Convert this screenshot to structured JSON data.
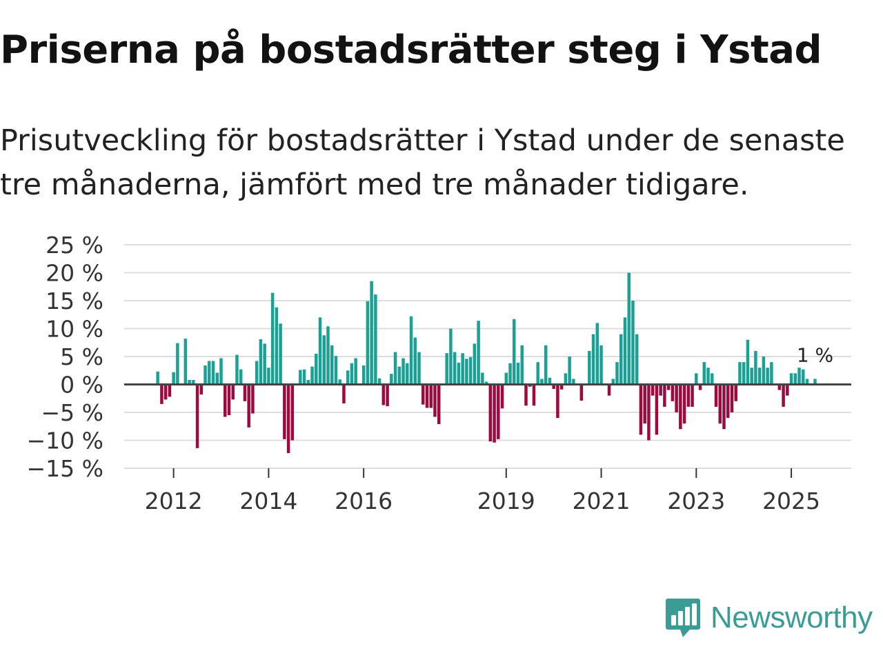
{
  "title": "Priserna på bostadsrätter steg i Ystad",
  "subtitle": "Prisutveckling för bostadsrätter i Ystad under de senaste tre månaderna, jämfört med tre månader tidigare.",
  "brand": {
    "name": "Newsworthy",
    "icon": "newsworthy-logo-icon",
    "color": "#3a9c95"
  },
  "colors": {
    "positive": "#1aa196",
    "negative": "#9c0a3f",
    "grid": "#dddddd",
    "zero_line": "#444444"
  },
  "chart_data": {
    "type": "bar",
    "title": "Priserna på bostadsrätter steg i Ystad",
    "xlabel": "",
    "ylabel": "",
    "ylim": [
      -15,
      25
    ],
    "y_ticks": [
      25,
      20,
      15,
      10,
      5,
      0,
      -5,
      -10,
      -15
    ],
    "y_tick_labels": [
      "25 %",
      "20 %",
      "15 %",
      "10 %",
      "5 %",
      "0 %",
      "−5 %",
      "−10 %",
      "−15 %"
    ],
    "x_ticks": [
      {
        "label": "2012",
        "year": 2012
      },
      {
        "label": "2014",
        "year": 2014
      },
      {
        "label": "2016",
        "year": 2016
      },
      {
        "label": "2019",
        "year": 2019
      },
      {
        "label": "2021",
        "year": 2021
      },
      {
        "label": "2023",
        "year": 2023
      },
      {
        "label": "2025",
        "year": 2025
      }
    ],
    "x_start": {
      "year": 2011,
      "month": 1
    },
    "annotation": {
      "label": "1 %",
      "value": 1
    },
    "series": [
      {
        "name": "Prisutveckling",
        "data": [
          {
            "year": 2011,
            "month": 9,
            "value": 2.3
          },
          {
            "year": 2011,
            "month": 10,
            "value": -3.5
          },
          {
            "year": 2011,
            "month": 11,
            "value": -2.7
          },
          {
            "year": 2011,
            "month": 12,
            "value": -2.2
          },
          {
            "year": 2012,
            "month": 1,
            "value": 2.2
          },
          {
            "year": 2012,
            "month": 2,
            "value": 7.4
          },
          {
            "year": 2012,
            "month": 4,
            "value": 8.2
          },
          {
            "year": 2012,
            "month": 5,
            "value": 0.8
          },
          {
            "year": 2012,
            "month": 6,
            "value": 0.8
          },
          {
            "year": 2012,
            "month": 7,
            "value": -11.4
          },
          {
            "year": 2012,
            "month": 8,
            "value": -1.8
          },
          {
            "year": 2012,
            "month": 9,
            "value": 3.4
          },
          {
            "year": 2012,
            "month": 10,
            "value": 4.2
          },
          {
            "year": 2012,
            "month": 11,
            "value": 4.2
          },
          {
            "year": 2012,
            "month": 12,
            "value": 2.1
          },
          {
            "year": 2013,
            "month": 1,
            "value": 4.7
          },
          {
            "year": 2013,
            "month": 2,
            "value": -5.8
          },
          {
            "year": 2013,
            "month": 3,
            "value": -5.5
          },
          {
            "year": 2013,
            "month": 4,
            "value": -2.7
          },
          {
            "year": 2013,
            "month": 5,
            "value": 5.3
          },
          {
            "year": 2013,
            "month": 6,
            "value": 2.7
          },
          {
            "year": 2013,
            "month": 7,
            "value": -3.0
          },
          {
            "year": 2013,
            "month": 8,
            "value": -7.7
          },
          {
            "year": 2013,
            "month": 9,
            "value": -5.2
          },
          {
            "year": 2013,
            "month": 10,
            "value": 4.2
          },
          {
            "year": 2013,
            "month": 11,
            "value": 8.1
          },
          {
            "year": 2013,
            "month": 12,
            "value": 7.3
          },
          {
            "year": 2014,
            "month": 1,
            "value": 3.0
          },
          {
            "year": 2014,
            "month": 2,
            "value": 16.4
          },
          {
            "year": 2014,
            "month": 3,
            "value": 13.8
          },
          {
            "year": 2014,
            "month": 4,
            "value": 10.9
          },
          {
            "year": 2014,
            "month": 5,
            "value": -9.8
          },
          {
            "year": 2014,
            "month": 6,
            "value": -12.3
          },
          {
            "year": 2014,
            "month": 7,
            "value": -10.0
          },
          {
            "year": 2014,
            "month": 9,
            "value": 2.6
          },
          {
            "year": 2014,
            "month": 10,
            "value": 2.7
          },
          {
            "year": 2014,
            "month": 11,
            "value": 0.8
          },
          {
            "year": 2014,
            "month": 12,
            "value": 3.2
          },
          {
            "year": 2015,
            "month": 1,
            "value": 5.5
          },
          {
            "year": 2015,
            "month": 2,
            "value": 12.0
          },
          {
            "year": 2015,
            "month": 3,
            "value": 8.8
          },
          {
            "year": 2015,
            "month": 4,
            "value": 10.4
          },
          {
            "year": 2015,
            "month": 5,
            "value": 7.0
          },
          {
            "year": 2015,
            "month": 6,
            "value": 5.1
          },
          {
            "year": 2015,
            "month": 7,
            "value": 0.9
          },
          {
            "year": 2015,
            "month": 8,
            "value": -3.4
          },
          {
            "year": 2015,
            "month": 9,
            "value": 2.5
          },
          {
            "year": 2015,
            "month": 10,
            "value": 3.8
          },
          {
            "year": 2015,
            "month": 11,
            "value": 4.7
          },
          {
            "year": 2016,
            "month": 1,
            "value": 3.4
          },
          {
            "year": 2016,
            "month": 2,
            "value": 14.9
          },
          {
            "year": 2016,
            "month": 3,
            "value": 18.5
          },
          {
            "year": 2016,
            "month": 4,
            "value": 16.1
          },
          {
            "year": 2016,
            "month": 5,
            "value": 1.1
          },
          {
            "year": 2016,
            "month": 6,
            "value": -3.7
          },
          {
            "year": 2016,
            "month": 7,
            "value": -3.9
          },
          {
            "year": 2016,
            "month": 8,
            "value": 1.9
          },
          {
            "year": 2016,
            "month": 9,
            "value": 5.8
          },
          {
            "year": 2016,
            "month": 10,
            "value": 3.2
          },
          {
            "year": 2016,
            "month": 11,
            "value": 4.7
          },
          {
            "year": 2016,
            "month": 12,
            "value": 3.8
          },
          {
            "year": 2017,
            "month": 1,
            "value": 12.2
          },
          {
            "year": 2017,
            "month": 2,
            "value": 8.4
          },
          {
            "year": 2017,
            "month": 3,
            "value": 5.8
          },
          {
            "year": 2017,
            "month": 4,
            "value": -3.6
          },
          {
            "year": 2017,
            "month": 5,
            "value": -4.2
          },
          {
            "year": 2017,
            "month": 6,
            "value": -4.2
          },
          {
            "year": 2017,
            "month": 7,
            "value": -5.8
          },
          {
            "year": 2017,
            "month": 8,
            "value": -7.1
          },
          {
            "year": 2017,
            "month": 10,
            "value": 5.6
          },
          {
            "year": 2017,
            "month": 11,
            "value": 10.0
          },
          {
            "year": 2017,
            "month": 12,
            "value": 5.8
          },
          {
            "year": 2018,
            "month": 1,
            "value": 3.9
          },
          {
            "year": 2018,
            "month": 2,
            "value": 5.6
          },
          {
            "year": 2018,
            "month": 3,
            "value": 4.6
          },
          {
            "year": 2018,
            "month": 4,
            "value": 4.9
          },
          {
            "year": 2018,
            "month": 5,
            "value": 7.3
          },
          {
            "year": 2018,
            "month": 6,
            "value": 11.4
          },
          {
            "year": 2018,
            "month": 7,
            "value": 2.1
          },
          {
            "year": 2018,
            "month": 8,
            "value": 0.5
          },
          {
            "year": 2018,
            "month": 9,
            "value": -10.2
          },
          {
            "year": 2018,
            "month": 10,
            "value": -10.4
          },
          {
            "year": 2018,
            "month": 11,
            "value": -9.8
          },
          {
            "year": 2018,
            "month": 12,
            "value": -4.3
          },
          {
            "year": 2019,
            "month": 1,
            "value": 2.1
          },
          {
            "year": 2019,
            "month": 2,
            "value": 3.8
          },
          {
            "year": 2019,
            "month": 3,
            "value": 11.7
          },
          {
            "year": 2019,
            "month": 4,
            "value": 3.9
          },
          {
            "year": 2019,
            "month": 5,
            "value": 7.0
          },
          {
            "year": 2019,
            "month": 6,
            "value": -3.8
          },
          {
            "year": 2019,
            "month": 7,
            "value": -0.4
          },
          {
            "year": 2019,
            "month": 8,
            "value": -3.8
          },
          {
            "year": 2019,
            "month": 9,
            "value": 4.0
          },
          {
            "year": 2019,
            "month": 10,
            "value": 1.0
          },
          {
            "year": 2019,
            "month": 11,
            "value": 7.0
          },
          {
            "year": 2019,
            "month": 12,
            "value": 1.2
          },
          {
            "year": 2020,
            "month": 1,
            "value": -0.8
          },
          {
            "year": 2020,
            "month": 2,
            "value": -6.0
          },
          {
            "year": 2020,
            "month": 3,
            "value": -0.9
          },
          {
            "year": 2020,
            "month": 4,
            "value": 2.0
          },
          {
            "year": 2020,
            "month": 5,
            "value": 5.0
          },
          {
            "year": 2020,
            "month": 6,
            "value": 1.0
          },
          {
            "year": 2020,
            "month": 8,
            "value": -2.9
          },
          {
            "year": 2020,
            "month": 10,
            "value": 6.0
          },
          {
            "year": 2020,
            "month": 11,
            "value": 9.0
          },
          {
            "year": 2020,
            "month": 12,
            "value": 11.0
          },
          {
            "year": 2021,
            "month": 1,
            "value": 7.0
          },
          {
            "year": 2021,
            "month": 3,
            "value": -2.0
          },
          {
            "year": 2021,
            "month": 4,
            "value": 1.0
          },
          {
            "year": 2021,
            "month": 5,
            "value": 4.0
          },
          {
            "year": 2021,
            "month": 6,
            "value": 9.0
          },
          {
            "year": 2021,
            "month": 7,
            "value": 12.0
          },
          {
            "year": 2021,
            "month": 8,
            "value": 20.0
          },
          {
            "year": 2021,
            "month": 9,
            "value": 15.0
          },
          {
            "year": 2021,
            "month": 10,
            "value": 9.0
          },
          {
            "year": 2021,
            "month": 11,
            "value": -9.0
          },
          {
            "year": 2021,
            "month": 12,
            "value": -7.0
          },
          {
            "year": 2022,
            "month": 1,
            "value": -10.0
          },
          {
            "year": 2022,
            "month": 2,
            "value": -2.0
          },
          {
            "year": 2022,
            "month": 3,
            "value": -9.0
          },
          {
            "year": 2022,
            "month": 4,
            "value": -2.0
          },
          {
            "year": 2022,
            "month": 5,
            "value": -4.0
          },
          {
            "year": 2022,
            "month": 6,
            "value": -1.0
          },
          {
            "year": 2022,
            "month": 7,
            "value": -3.0
          },
          {
            "year": 2022,
            "month": 8,
            "value": -5.0
          },
          {
            "year": 2022,
            "month": 9,
            "value": -8.0
          },
          {
            "year": 2022,
            "month": 10,
            "value": -7.0
          },
          {
            "year": 2022,
            "month": 11,
            "value": -4.0
          },
          {
            "year": 2022,
            "month": 12,
            "value": -4.0
          },
          {
            "year": 2023,
            "month": 1,
            "value": 2.0
          },
          {
            "year": 2023,
            "month": 2,
            "value": -1.0
          },
          {
            "year": 2023,
            "month": 3,
            "value": 4.0
          },
          {
            "year": 2023,
            "month": 4,
            "value": 3.0
          },
          {
            "year": 2023,
            "month": 5,
            "value": 2.0
          },
          {
            "year": 2023,
            "month": 6,
            "value": -4.0
          },
          {
            "year": 2023,
            "month": 7,
            "value": -7.0
          },
          {
            "year": 2023,
            "month": 8,
            "value": -8.0
          },
          {
            "year": 2023,
            "month": 9,
            "value": -6.0
          },
          {
            "year": 2023,
            "month": 10,
            "value": -5.0
          },
          {
            "year": 2023,
            "month": 11,
            "value": -3.0
          },
          {
            "year": 2023,
            "month": 12,
            "value": 4.0
          },
          {
            "year": 2024,
            "month": 1,
            "value": 4.0
          },
          {
            "year": 2024,
            "month": 2,
            "value": 8.0
          },
          {
            "year": 2024,
            "month": 3,
            "value": 3.0
          },
          {
            "year": 2024,
            "month": 4,
            "value": 6.0
          },
          {
            "year": 2024,
            "month": 5,
            "value": 3.0
          },
          {
            "year": 2024,
            "month": 6,
            "value": 5.0
          },
          {
            "year": 2024,
            "month": 7,
            "value": 3.0
          },
          {
            "year": 2024,
            "month": 8,
            "value": 4.0
          },
          {
            "year": 2024,
            "month": 10,
            "value": -1.0
          },
          {
            "year": 2024,
            "month": 11,
            "value": -4.0
          },
          {
            "year": 2024,
            "month": 12,
            "value": -2.0
          },
          {
            "year": 2025,
            "month": 1,
            "value": 2.0
          },
          {
            "year": 2025,
            "month": 2,
            "value": 2.0
          },
          {
            "year": 2025,
            "month": 3,
            "value": 3.0
          },
          {
            "year": 2025,
            "month": 4,
            "value": 2.7
          },
          {
            "year": 2025,
            "month": 5,
            "value": 1.0
          },
          {
            "year": 2025,
            "month": 7,
            "value": 1.0
          }
        ]
      }
    ]
  }
}
